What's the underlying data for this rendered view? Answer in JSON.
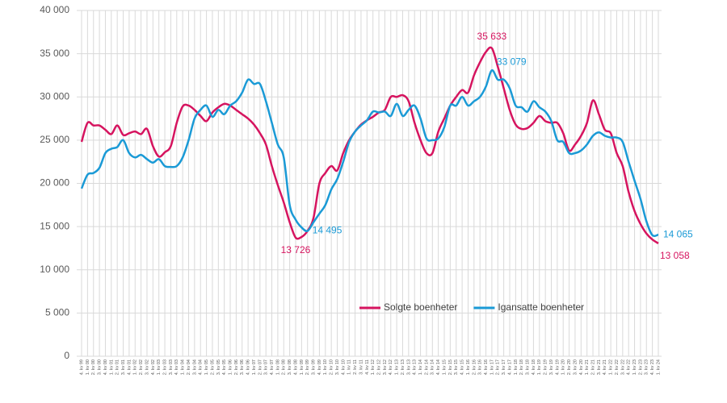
{
  "chart_data": {
    "type": "line",
    "categories": [
      "4. kv 99",
      "1. kv 00",
      "2. kv 00",
      "3. kv 00",
      "4. kv 00",
      "1. kv 01",
      "2. kv 01",
      "3. kv 01",
      "4. kv 01",
      "1. kv 02",
      "2. kv 02",
      "3. kv 02",
      "4. kv 02",
      "1. kv 03",
      "2. kv 03",
      "3. kv 03",
      "4. kv 03",
      "1. kv 04",
      "2. kv 04",
      "3. kv 04",
      "4. kv 04",
      "1. kv 05",
      "2. kv 05",
      "3. kv 05",
      "4. kv 05",
      "1. kv 06",
      "2. kv 06",
      "3. kv 06",
      "4. kv 06",
      "1. kv 07",
      "2. kv 07",
      "3. kv 07",
      "4. kv 07",
      "1. kv 08",
      "2. kv 08",
      "3. kv 08",
      "4. kv 08",
      "1. kv 09",
      "2. kv 09",
      "3. kv 09",
      "4. kv 09",
      "1. kv 10",
      "2. kv 10",
      "3. kv 10",
      "4. kv 10",
      "1. kv 11",
      "2. kv 11",
      "3. kv 11",
      "4. kv 11",
      "1. kv 12",
      "2. kv 12",
      "3. kv 12",
      "4. kv 12",
      "1. kv 13",
      "2. kv 13",
      "3. kv 13",
      "4. kv 13",
      "1. kv 14",
      "2. kv 14",
      "3. kv 14",
      "4. kv 14",
      "1. kv 15",
      "2. kv 15",
      "3. kv 15",
      "4. kv 15",
      "1. kv 16",
      "2. kv 16",
      "3. kv 16",
      "4. kv 16",
      "1. kv 17",
      "2. kv 17",
      "3. kv 17",
      "4. kv 17",
      "1. kv 18",
      "2. kv 18",
      "3. kv 18",
      "4. kv 18",
      "1. kv 19",
      "2. kv 19",
      "3. kv 19",
      "4. kv 19",
      "1. kv 20",
      "2. kv 20",
      "3. kv 20",
      "4. kv 20",
      "1. kv 21",
      "2. kv 21",
      "3. kv 21",
      "4. kv 21",
      "1. kv 22",
      "2. kv 22",
      "3. kv 22",
      "4. kv 22",
      "1. kv 23",
      "2. kv 23",
      "3. kv 23",
      "4. kv 23",
      "1. kv 24"
    ],
    "series": [
      {
        "name": "Solgte boenheter",
        "color": "#d6145f",
        "values": [
          24800,
          27000,
          26700,
          26700,
          26200,
          25700,
          26700,
          25600,
          25800,
          26000,
          25700,
          26300,
          24300,
          23100,
          23600,
          24300,
          27000,
          28900,
          29000,
          28500,
          27800,
          27200,
          28200,
          28800,
          29200,
          29000,
          28500,
          28000,
          27500,
          26800,
          25800,
          24500,
          22000,
          19800,
          17800,
          15500,
          13726,
          13800,
          14500,
          16000,
          20000,
          21200,
          22000,
          21500,
          23500,
          25000,
          26000,
          26800,
          27300,
          27700,
          28200,
          28500,
          30000,
          30000,
          30200,
          29500,
          27000,
          25000,
          23500,
          23500,
          26000,
          27500,
          29000,
          30000,
          30800,
          30500,
          32500,
          34000,
          35200,
          35633,
          33500,
          31000,
          28500,
          26800,
          26300,
          26400,
          27000,
          27800,
          27200,
          27000,
          27000,
          25800,
          23800,
          24500,
          25500,
          27000,
          29600,
          28000,
          26200,
          25800,
          23500,
          22000,
          19000,
          16800,
          15300,
          14200,
          13500,
          13058
        ],
        "value_labels": [
          null,
          null,
          null,
          null,
          null,
          null,
          null,
          null,
          null,
          null,
          null,
          null,
          null,
          null,
          null,
          null,
          null,
          null,
          null,
          null,
          null,
          null,
          null,
          null,
          null,
          null,
          null,
          null,
          null,
          null,
          null,
          null,
          null,
          null,
          null,
          null,
          "13 726",
          null,
          null,
          null,
          null,
          null,
          null,
          null,
          null,
          null,
          null,
          null,
          null,
          null,
          null,
          null,
          null,
          null,
          null,
          null,
          null,
          null,
          null,
          null,
          null,
          null,
          null,
          null,
          null,
          null,
          null,
          null,
          null,
          "35 633",
          null,
          null,
          null,
          null,
          null,
          null,
          null,
          null,
          null,
          null,
          null,
          null,
          null,
          null,
          null,
          null,
          null,
          null,
          null,
          null,
          null,
          null,
          null,
          null,
          null,
          null,
          null,
          "13 058"
        ]
      },
      {
        "name": "Igansatte boenheter",
        "color": "#1a9ad6",
        "values": [
          19400,
          21000,
          21200,
          21800,
          23500,
          24000,
          24200,
          25000,
          23500,
          23000,
          23300,
          22800,
          22400,
          22800,
          22000,
          21900,
          22000,
          23000,
          25000,
          27500,
          28500,
          29000,
          27700,
          28500,
          28000,
          29000,
          29500,
          30500,
          32000,
          31500,
          31500,
          29500,
          27000,
          24500,
          23000,
          17500,
          15800,
          14900,
          14495,
          15500,
          16500,
          17500,
          19300,
          20500,
          22500,
          24800,
          26000,
          26700,
          27300,
          28300,
          28200,
          28300,
          27800,
          29200,
          27800,
          28500,
          29000,
          27500,
          25200,
          25000,
          25200,
          26500,
          29000,
          29000,
          30000,
          29000,
          29500,
          30000,
          31200,
          33079,
          32000,
          32000,
          31000,
          29000,
          28800,
          28300,
          29500,
          28800,
          28300,
          27200,
          25000,
          24800,
          23500,
          23500,
          23800,
          24500,
          25500,
          25900,
          25500,
          25300,
          25300,
          24800,
          22500,
          20300,
          18200,
          15600,
          14000,
          14065
        ],
        "value_labels": [
          null,
          null,
          null,
          null,
          null,
          null,
          null,
          null,
          null,
          null,
          null,
          null,
          null,
          null,
          null,
          null,
          null,
          null,
          null,
          null,
          null,
          null,
          null,
          null,
          null,
          null,
          null,
          null,
          null,
          null,
          null,
          null,
          null,
          null,
          null,
          null,
          null,
          null,
          "14 495",
          null,
          null,
          null,
          null,
          null,
          null,
          null,
          null,
          null,
          null,
          null,
          null,
          null,
          null,
          null,
          null,
          null,
          null,
          null,
          null,
          null,
          null,
          null,
          null,
          null,
          null,
          null,
          null,
          null,
          null,
          "33 079",
          null,
          null,
          null,
          null,
          null,
          null,
          null,
          null,
          null,
          null,
          null,
          null,
          null,
          null,
          null,
          null,
          null,
          null,
          null,
          null,
          null,
          null,
          null,
          null,
          null,
          null,
          null,
          "14 065"
        ]
      }
    ],
    "ylim": [
      0,
      40000
    ],
    "yticks": [
      {
        "value": 0,
        "label": "0"
      },
      {
        "value": 5000,
        "label": "5 000"
      },
      {
        "value": 10000,
        "label": "10 000"
      },
      {
        "value": 15000,
        "label": "15 000"
      },
      {
        "value": 20000,
        "label": "20 000"
      },
      {
        "value": 25000,
        "label": "25 000"
      },
      {
        "value": 30000,
        "label": "30 000"
      },
      {
        "value": 35000,
        "label": "35 000"
      },
      {
        "value": 40000,
        "label": "40 000"
      }
    ],
    "grid": true,
    "legend": "lower right"
  }
}
